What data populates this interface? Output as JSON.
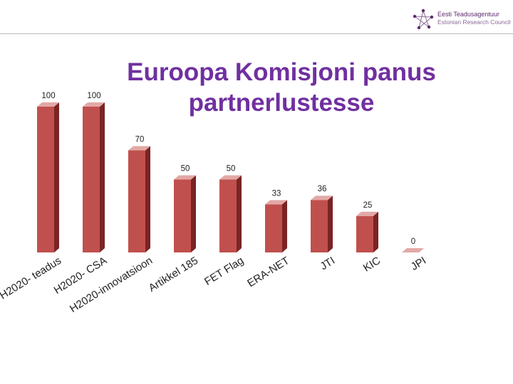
{
  "header": {
    "logo_line1": "Eesti Teadusagentuur",
    "logo_line2": "Estonian Research Council",
    "logo_icon": "star-network-icon"
  },
  "colors": {
    "bar_front": "#c0504d",
    "bar_side": "#7a2424",
    "bar_top": "#e2a8a6",
    "title": "#7030a0"
  },
  "chart_data": {
    "type": "bar",
    "title": "Euroopa Komisjoni panus partnerlustesse",
    "categories": [
      "H2020- teadus",
      "H2020- CSA",
      "H2020-innovatsioon",
      "Artikkel 185",
      "FET Flag",
      "ERA-NET",
      "JTI",
      "KIC",
      "JPI"
    ],
    "values": [
      100,
      100,
      70,
      50,
      50,
      33,
      36,
      25,
      0
    ],
    "ylim": [
      0,
      100
    ],
    "grid": false,
    "legend": "none"
  }
}
